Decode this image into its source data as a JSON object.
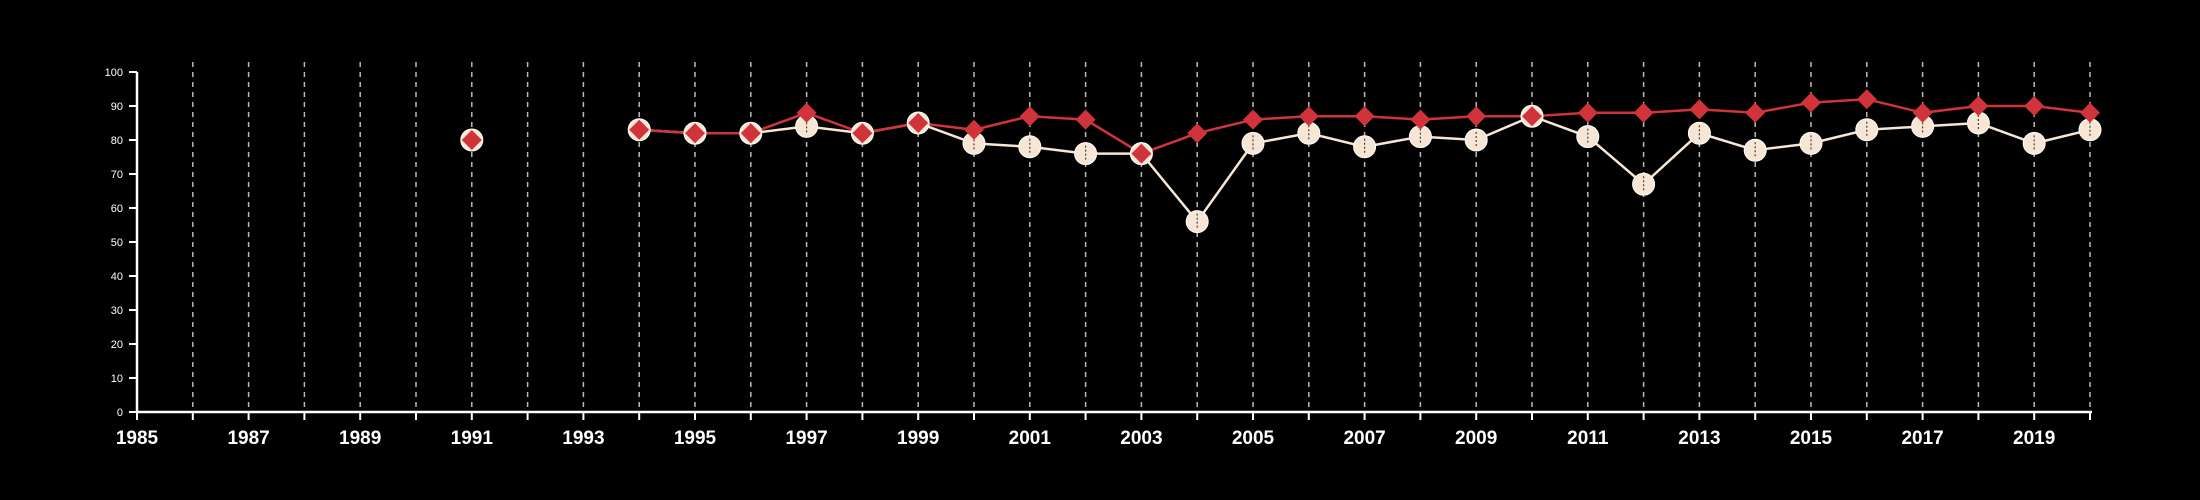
{
  "chart_data": {
    "type": "line",
    "title": "",
    "xlabel": "",
    "ylabel": "",
    "xlim": [
      1985,
      2020
    ],
    "ylim": [
      0,
      100
    ],
    "x_tick_labels": [
      "1985",
      "1987",
      "1989",
      "1991",
      "1993",
      "1995",
      "1997",
      "1999",
      "2001",
      "2003",
      "2005",
      "2007",
      "2009",
      "2011",
      "2013",
      "2015",
      "2017",
      "2019"
    ],
    "y_tick_labels": [
      "0",
      "10",
      "20",
      "30",
      "40",
      "50",
      "60",
      "70",
      "80",
      "90",
      "100"
    ],
    "grid": "vertical dashed lines at every year",
    "legend": "none",
    "series": [
      {
        "marker": "diamond",
        "color": "#d0343a",
        "points": [
          [
            1991,
            80
          ],
          [
            1994,
            83
          ],
          [
            1995,
            82
          ],
          [
            1996,
            82
          ],
          [
            1997,
            88
          ],
          [
            1998,
            82
          ],
          [
            1999,
            85
          ],
          [
            2000,
            83
          ],
          [
            2001,
            87
          ],
          [
            2002,
            86
          ],
          [
            2003,
            76
          ],
          [
            2004,
            82
          ],
          [
            2005,
            86
          ],
          [
            2006,
            87
          ],
          [
            2007,
            87
          ],
          [
            2008,
            86
          ],
          [
            2009,
            87
          ],
          [
            2010,
            87
          ],
          [
            2011,
            88
          ],
          [
            2012,
            88
          ],
          [
            2013,
            89
          ],
          [
            2014,
            88
          ],
          [
            2015,
            91
          ],
          [
            2016,
            92
          ],
          [
            2017,
            88
          ],
          [
            2018,
            90
          ],
          [
            2019,
            90
          ],
          [
            2020,
            88
          ]
        ]
      },
      {
        "marker": "circle",
        "color": "#f7e6d4",
        "points": [
          [
            1991,
            80
          ],
          [
            1994,
            83
          ],
          [
            1995,
            82
          ],
          [
            1996,
            82
          ],
          [
            1997,
            84
          ],
          [
            1998,
            82
          ],
          [
            1999,
            85
          ],
          [
            2000,
            79
          ],
          [
            2001,
            78
          ],
          [
            2002,
            76
          ],
          [
            2003,
            76
          ],
          [
            2004,
            56
          ],
          [
            2005,
            79
          ],
          [
            2006,
            82
          ],
          [
            2007,
            78
          ],
          [
            2008,
            81
          ],
          [
            2009,
            80
          ],
          [
            2010,
            87
          ],
          [
            2011,
            81
          ],
          [
            2012,
            67
          ],
          [
            2013,
            82
          ],
          [
            2014,
            77
          ],
          [
            2015,
            79
          ],
          [
            2016,
            83
          ],
          [
            2017,
            84
          ],
          [
            2018,
            85
          ],
          [
            2019,
            79
          ],
          [
            2020,
            83
          ]
        ]
      }
    ]
  },
  "colors": {
    "background": "#000000",
    "axis": "#ffffff",
    "grid": "#bbbbbb"
  }
}
